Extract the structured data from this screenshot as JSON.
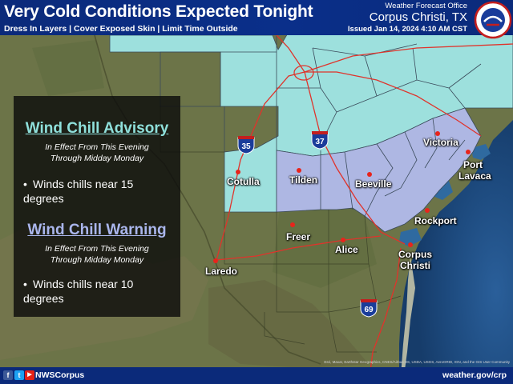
{
  "header": {
    "title": "Very Cold Conditions Expected Tonight",
    "subtitle": "Dress In Layers | Cover Exposed Skin | Limit Time Outside",
    "office_label": "Weather Forecast Office",
    "office_name": "Corpus Christi, TX",
    "issued": "Issued Jan 14, 2024 4:10 AM CST",
    "logo": "nws-logo"
  },
  "legend_panel": {
    "advisory": {
      "title": "Wind Chill Advisory",
      "effect_line1": "In Effect From This Evening",
      "effect_line2": "Through Midday Monday",
      "bullet_line1": "Winds chills near 15",
      "bullet_line2": "degrees",
      "color": "#9de0dd"
    },
    "warning": {
      "title": "Wind Chill Warning",
      "effect_line1": "In Effect  From This Evening",
      "effect_line2": "Through Midday Monday",
      "bullet_line1": "Winds chills near 10",
      "bullet_line2": "degrees",
      "color": "#aeb7e3"
    },
    "bullet_char": "•"
  },
  "cities": {
    "victoria": "Victoria",
    "port_lavaca_1": "Port",
    "port_lavaca_2": "Lavaca",
    "cotulla": "Cotulla",
    "tilden": "Tilden",
    "beeville": "Beeville",
    "rockport": "Rockport",
    "freer": "Freer",
    "alice": "Alice",
    "corpus_1": "Corpus",
    "corpus_2": "Christi",
    "laredo": "Laredo"
  },
  "highways": {
    "i35": "35",
    "i37": "37",
    "i69": "69"
  },
  "footer": {
    "facebook": "f",
    "twitter": "t",
    "youtube": "▶",
    "handle": "NWSCorpus",
    "website": "weather.gov/crp"
  },
  "attribution": "Esri, Maxar, Earthstar Geographics, CNES/Airbus DS, USDA, USGS, AeroGRID, IGN, and the GIS User Community",
  "colors": {
    "advisory_fill": "#9de0dd",
    "warning_fill": "#aeb7e3",
    "header_blue": "#0b2a7a",
    "city_dot": "#e8241c",
    "highway_red": "#e0332b",
    "advisory_title": "#8fe0db",
    "warning_title": "#aab6ec"
  }
}
